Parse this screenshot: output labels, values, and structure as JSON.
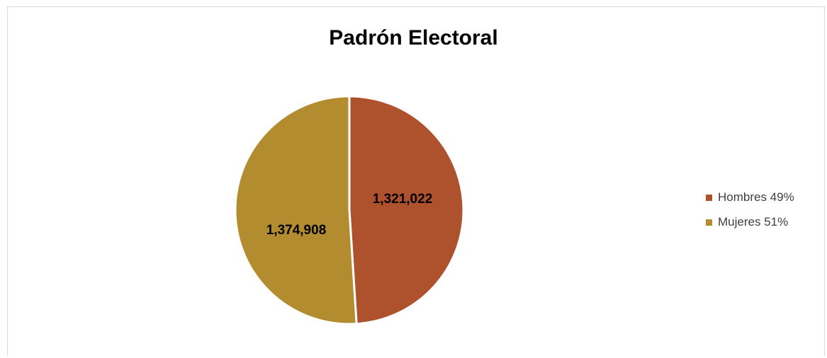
{
  "colors": {
    "hombres": "#AE512D",
    "mujeres": "#B28C2F"
  },
  "chart_data": {
    "type": "pie",
    "title": "Padrón Electoral",
    "series": [
      {
        "name": "Hombres 49%",
        "value": 1321022,
        "label": "1,321,022",
        "color": "#AE512D"
      },
      {
        "name": "Mujeres 51%",
        "value": 1374908,
        "label": "1,374,908",
        "color": "#B28C2F"
      }
    ],
    "legend": "right"
  }
}
